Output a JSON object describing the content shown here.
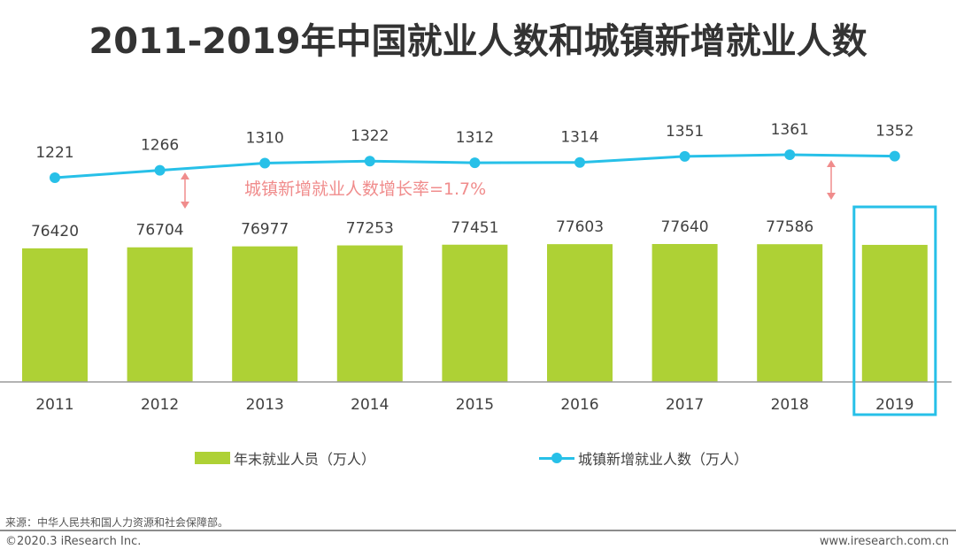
{
  "title": "2011-2019年中国就业人数和城镇新增就业人数",
  "chart_data": {
    "type": "bar+line",
    "title": "2011-2019年中国就业人数和城镇新增就业人数",
    "categories": [
      "2011",
      "2012",
      "2013",
      "2014",
      "2015",
      "2016",
      "2017",
      "2018",
      "2019"
    ],
    "series": [
      {
        "name": "年末就业人员（万人）",
        "type": "bar",
        "color": "#aed135",
        "values": [
          76420,
          76704,
          76977,
          77253,
          77451,
          77603,
          77640,
          77586,
          null
        ],
        "labels": [
          "76420",
          "76704",
          "76977",
          "77253",
          "77451",
          "77603",
          "77640",
          "77586",
          ""
        ]
      },
      {
        "name": "城镇新增就业人数（万人）",
        "type": "line",
        "color": "#27c0e8",
        "values": [
          1221,
          1266,
          1310,
          1322,
          1312,
          1314,
          1351,
          1361,
          1352
        ],
        "labels": [
          "1221",
          "1266",
          "1310",
          "1322",
          "1312",
          "1314",
          "1351",
          "1361",
          "1352"
        ]
      }
    ],
    "annotation": "城镇新增就业人数增长率=1.7%",
    "highlight_category": "2019",
    "legend_position": "bottom",
    "grid": false
  },
  "legend": {
    "bar_label": "年末就业人员（万人）",
    "line_label": "城镇新增就业人数（万人）"
  },
  "footer": {
    "source": "来源：中华人民共和国人力资源和社会保障部。",
    "copyright": "©2020.3 iResearch Inc.",
    "website": "www.iresearch.com.cn"
  },
  "colors": {
    "bar": "#aed135",
    "line": "#27c0e8",
    "annotation": "#f08c8c",
    "highlight": "#27c0e8"
  }
}
